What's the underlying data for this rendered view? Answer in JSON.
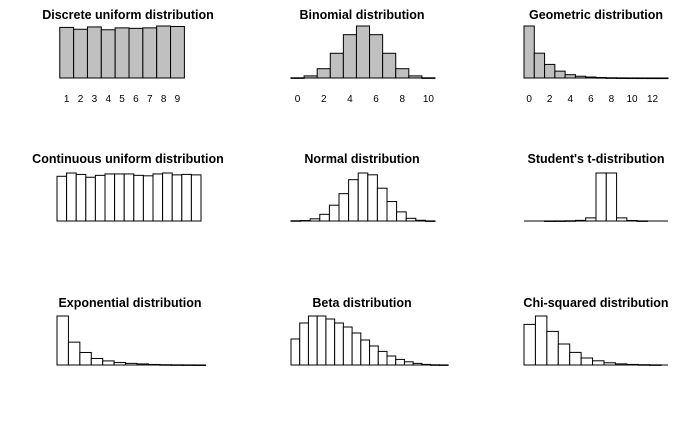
{
  "chart_data": [
    {
      "type": "bar",
      "title": "Discrete uniform distribution",
      "x": [
        1,
        2,
        3,
        4,
        5,
        6,
        7,
        8,
        9
      ],
      "values": [
        0.108,
        0.104,
        0.109,
        0.103,
        0.107,
        0.106,
        0.107,
        0.111,
        0.11
      ],
      "ylim": [
        0,
        0.111
      ],
      "xlim": [
        0.3,
        10.7
      ],
      "tick_labels": [
        "1",
        "2",
        "3",
        "4",
        "5",
        "6",
        "7",
        "8",
        "9"
      ],
      "tick_positions": [
        1,
        2,
        3,
        4,
        5,
        6,
        7,
        8,
        9
      ],
      "fill": "#c0c0c0"
    },
    {
      "type": "bar",
      "title": "Binomial distribution",
      "x": [
        0,
        1,
        2,
        3,
        4,
        5,
        6,
        7,
        8,
        9,
        10
      ],
      "values": [
        0.001,
        0.01,
        0.044,
        0.117,
        0.205,
        0.246,
        0.205,
        0.117,
        0.044,
        0.01,
        0.001
      ],
      "ylim": [
        0,
        0.246
      ],
      "xlim": [
        -0.5,
        10.5
      ],
      "tick_labels": [
        "0",
        "2",
        "4",
        "6",
        "8",
        "10"
      ],
      "tick_positions": [
        0,
        2,
        4,
        6,
        8,
        10
      ],
      "fill": "#c0c0c0"
    },
    {
      "type": "bar",
      "title": "Geometric distribution",
      "x": [
        0,
        1,
        2,
        3,
        4,
        5,
        6,
        7,
        8,
        9,
        10,
        11,
        12,
        13
      ],
      "values": [
        0.44,
        0.21,
        0.115,
        0.058,
        0.028,
        0.015,
        0.008,
        0.004,
        0.002,
        0.001,
        0.0005,
        0.0003,
        0.0002,
        0.0001
      ],
      "ylim": [
        0,
        0.44
      ],
      "xlim": [
        -0.5,
        13.5
      ],
      "tick_labels": [
        "0",
        "2",
        "4",
        "6",
        "8",
        "10",
        "12"
      ],
      "tick_positions": [
        0,
        2,
        4,
        6,
        8,
        10,
        12
      ],
      "fill": "#c0c0c0"
    },
    {
      "type": "histogram",
      "title": "Continuous uniform distribution",
      "bins": [
        0,
        1
      ],
      "values": [
        0.95,
        1.02,
        0.99,
        0.93,
        0.97,
        1.0,
        1.0,
        1.0,
        0.97,
        0.96,
        1.0,
        1.02,
        0.98,
        0.99,
        0.98
      ],
      "ylim": [
        0,
        1.02
      ]
    },
    {
      "type": "histogram",
      "title": "Normal distribution",
      "bins": [
        -4,
        4
      ],
      "values": [
        0.002,
        0.004,
        0.018,
        0.055,
        0.13,
        0.225,
        0.34,
        0.395,
        0.38,
        0.27,
        0.16,
        0.075,
        0.022,
        0.006,
        0.001
      ],
      "ylim": [
        0,
        0.395
      ]
    },
    {
      "type": "histogram",
      "title": "Student's t-distribution",
      "bins": [
        -20,
        20
      ],
      "values": [
        0.0005,
        0.001,
        0.002,
        0.006,
        0.03,
        0.46,
        0.46,
        0.03,
        0.005,
        0.001
      ],
      "ylim": [
        0,
        0.46
      ]
    },
    {
      "type": "histogram",
      "title": "Exponential distribution",
      "bins": [
        0,
        9
      ],
      "values": [
        0.9,
        0.42,
        0.23,
        0.12,
        0.075,
        0.045,
        0.03,
        0.02,
        0.01,
        0.005,
        0.003,
        0.002,
        0.001
      ],
      "ylim": [
        0,
        0.9
      ]
    },
    {
      "type": "histogram",
      "title": "Beta distribution",
      "bins": [
        0,
        1
      ],
      "values": [
        1.3,
        2.1,
        2.45,
        2.45,
        2.3,
        2.1,
        1.9,
        1.6,
        1.25,
        0.95,
        0.68,
        0.45,
        0.28,
        0.16,
        0.08,
        0.03,
        0.01,
        0.005
      ],
      "ylim": [
        0,
        2.45
      ]
    },
    {
      "type": "histogram",
      "title": "Chi-squared distribution",
      "bins": [
        0,
        24
      ],
      "values": [
        0.145,
        0.175,
        0.12,
        0.075,
        0.045,
        0.025,
        0.015,
        0.008,
        0.004,
        0.002,
        0.001,
        0.0005
      ],
      "ylim": [
        0,
        0.175
      ]
    }
  ]
}
